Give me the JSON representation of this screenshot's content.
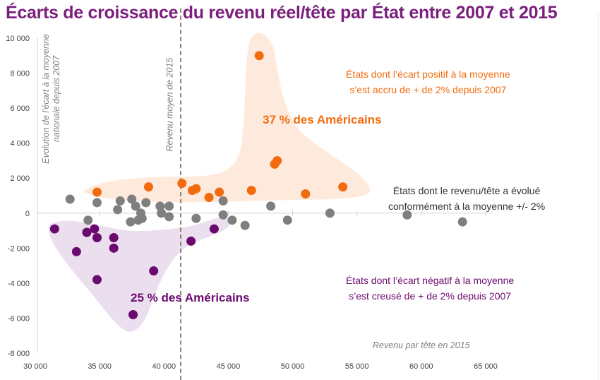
{
  "chart_data": {
    "type": "scatter",
    "title": "Écarts de croissance du revenu réel/tête par État entre 2007 et 2015",
    "xlabel": "Revenu par tête en 2015",
    "ylabel": "Evolution de l'écart à la moyenne nationale depuis 2007",
    "xlim": [
      30000,
      65000
    ],
    "ylim": [
      -8000,
      10000
    ],
    "x_ticks": [
      "30 000",
      "35 000",
      "40 000",
      "45 000",
      "50 000",
      "55 000",
      "60 000",
      "65 000"
    ],
    "y_ticks": [
      "10 000",
      "8 000",
      "6 000",
      "4 000",
      "2 000",
      "0",
      "-2 000",
      "-4 000",
      "-6 000",
      "-8 000"
    ],
    "grid": false,
    "reference_line": {
      "x": 41300,
      "label": "Revenu moyen de 2015"
    },
    "colors": {
      "above": "#f26b0f",
      "neutral": "#7f7f7f",
      "below": "#6b0a6e",
      "title": "#7a1f7d"
    },
    "series": [
      {
        "group": "above",
        "points": [
          [
            34800,
            1200
          ],
          [
            38800,
            1500
          ],
          [
            41400,
            1700
          ],
          [
            42200,
            1300
          ],
          [
            42500,
            1400
          ],
          [
            43500,
            900
          ],
          [
            44300,
            1200
          ],
          [
            46800,
            1300
          ],
          [
            47400,
            9000
          ],
          [
            48600,
            2800
          ],
          [
            48800,
            3000
          ],
          [
            51000,
            1100
          ],
          [
            53900,
            1500
          ]
        ]
      },
      {
        "group": "neutral",
        "points": [
          [
            32700,
            800
          ],
          [
            34100,
            -400
          ],
          [
            34800,
            600
          ],
          [
            36400,
            200
          ],
          [
            36600,
            700
          ],
          [
            37400,
            -500
          ],
          [
            37500,
            800
          ],
          [
            37800,
            400
          ],
          [
            38000,
            -400
          ],
          [
            38200,
            0
          ],
          [
            38300,
            -300
          ],
          [
            38600,
            600
          ],
          [
            39700,
            400
          ],
          [
            39800,
            0
          ],
          [
            40400,
            -200
          ],
          [
            40400,
            400
          ],
          [
            42500,
            -300
          ],
          [
            44600,
            700
          ],
          [
            44600,
            -100
          ],
          [
            45300,
            -400
          ],
          [
            46300,
            -700
          ],
          [
            48300,
            400
          ],
          [
            49600,
            -400
          ],
          [
            52900,
            0
          ],
          [
            58900,
            -100
          ],
          [
            63200,
            -500
          ]
        ]
      },
      {
        "group": "below",
        "points": [
          [
            31500,
            -900
          ],
          [
            33200,
            -2200
          ],
          [
            34000,
            -1100
          ],
          [
            34600,
            -900
          ],
          [
            34800,
            -1400
          ],
          [
            34800,
            -3800
          ],
          [
            36100,
            -1400
          ],
          [
            36100,
            -2000
          ],
          [
            37600,
            -5800
          ],
          [
            39200,
            -3300
          ],
          [
            42100,
            -1600
          ],
          [
            43900,
            -900
          ]
        ]
      }
    ],
    "annotations": {
      "above_text": [
        "États dont l’écart positif à la moyenne",
        "s’est accru de + de 2% depuis 2007"
      ],
      "above_share": "37 % des Américains",
      "neutral_text": [
        "États dont le revenu/tête a évolué",
        "conformément à la moyenne +/- 2%"
      ],
      "below_text": [
        "États dont l’écart négatif à la moyenne",
        "s’est creusé de + de 2% depuis 2007"
      ],
      "below_share": "25 % des Américains"
    }
  }
}
